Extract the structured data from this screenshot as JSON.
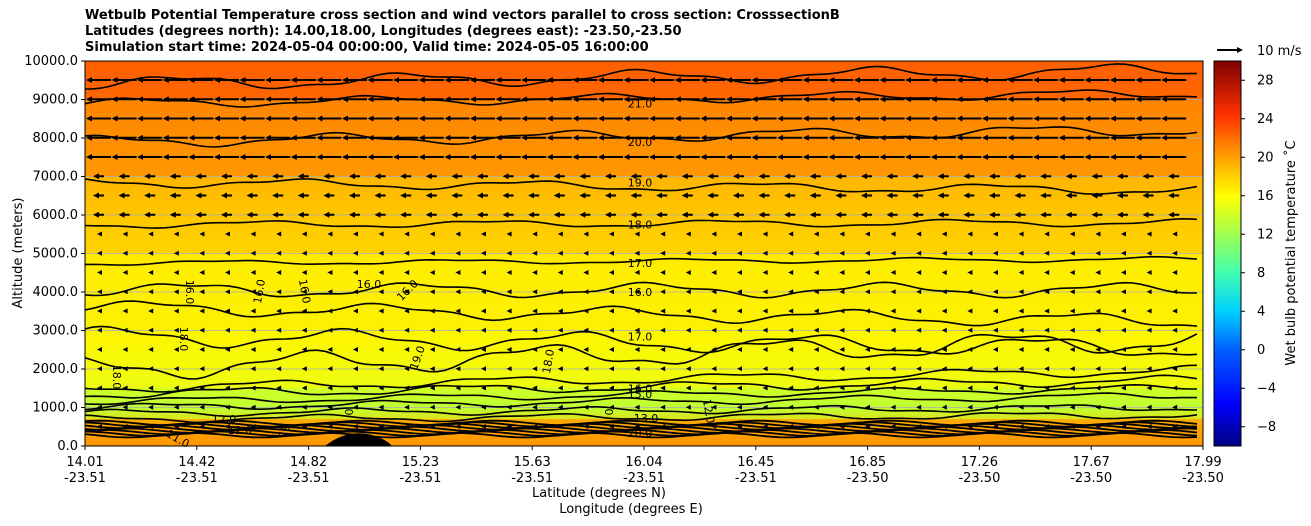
{
  "chart_data": {
    "type": "contour",
    "title_lines": [
      "Wetbulb Potential Temperature cross section and wind vectors parallel to cross section: CrosssectionB",
      "Latitudes (degrees north): 14.00,18.00, Longitudes (degrees east): -23.50,-23.50",
      "Simulation start time: 2024-05-04 00:00:00, Valid time: 2024-05-05 16:00:00"
    ],
    "ylabel": "Altitude (meters)",
    "xlabel_lat": "Latitude (degrees N)",
    "xlabel_lon": "Longitude (degrees E)",
    "ylim": [
      0,
      10000
    ],
    "yticks": [
      "0.0",
      "1000.0",
      "2000.0",
      "3000.0",
      "4000.0",
      "5000.0",
      "6000.0",
      "7000.0",
      "8000.0",
      "9000.0",
      "10000.0"
    ],
    "xticks_lat": [
      "14.01",
      "14.42",
      "14.82",
      "15.23",
      "15.63",
      "16.04",
      "16.45",
      "16.85",
      "17.26",
      "17.67",
      "17.99"
    ],
    "xticks_lon": [
      "-23.51",
      "-23.51",
      "-23.51",
      "-23.51",
      "-23.51",
      "-23.51",
      "-23.51",
      "-23.50",
      "-23.50",
      "-23.50",
      "-23.50"
    ],
    "colorbar": {
      "label": "Wet bulb potential temperature ˚C",
      "range": [
        -10,
        30
      ],
      "ticks": [
        "−8",
        "−4",
        "0",
        "4",
        "8",
        "12",
        "16",
        "20",
        "24",
        "28"
      ],
      "tick_values": [
        -8,
        -4,
        0,
        4,
        8,
        12,
        16,
        20,
        24,
        28
      ]
    },
    "quiver_key": "10 m/s",
    "contour_levels_altitude": [
      {
        "label": "21.0",
        "altitude": 8900
      },
      {
        "label": "20.0",
        "altitude": 7900
      },
      {
        "label": "19.0",
        "altitude": 6850
      },
      {
        "label": "18.0",
        "altitude": 5750
      },
      {
        "label": "17.0",
        "altitude": 4750
      },
      {
        "label": "16.0",
        "altitude": 4000
      },
      {
        "label": "17.0",
        "altitude": 2850
      },
      {
        "label": "16.0",
        "altitude": 1500
      },
      {
        "label": "15.0",
        "altitude": 1350
      },
      {
        "label": "12.0",
        "altitude": 700
      }
    ],
    "extra_contour_labels": [
      "16.0",
      "16.0",
      "16.0",
      "16.0",
      "16.0",
      "18.0",
      "18.0",
      "18.0",
      "19.0",
      "13.0",
      "12.0",
      "12.0",
      "20.0",
      "11.0",
      "0",
      "0",
      "19"
    ],
    "background_bands": [
      {
        "altitude_min": 9000,
        "altitude_max": 10000,
        "value": 22.5
      },
      {
        "altitude_min": 7000,
        "altitude_max": 9000,
        "value": 20.5
      },
      {
        "altitude_min": 5000,
        "altitude_max": 7000,
        "value": 18.5
      },
      {
        "altitude_min": 3000,
        "altitude_max": 5000,
        "value": 16.8
      },
      {
        "altitude_min": 1500,
        "altitude_max": 3000,
        "value": 16.3
      },
      {
        "altitude_min": 700,
        "altitude_max": 1500,
        "value": 14.0
      },
      {
        "altitude_min": 0,
        "altitude_max": 700,
        "value": 20.0
      }
    ]
  }
}
